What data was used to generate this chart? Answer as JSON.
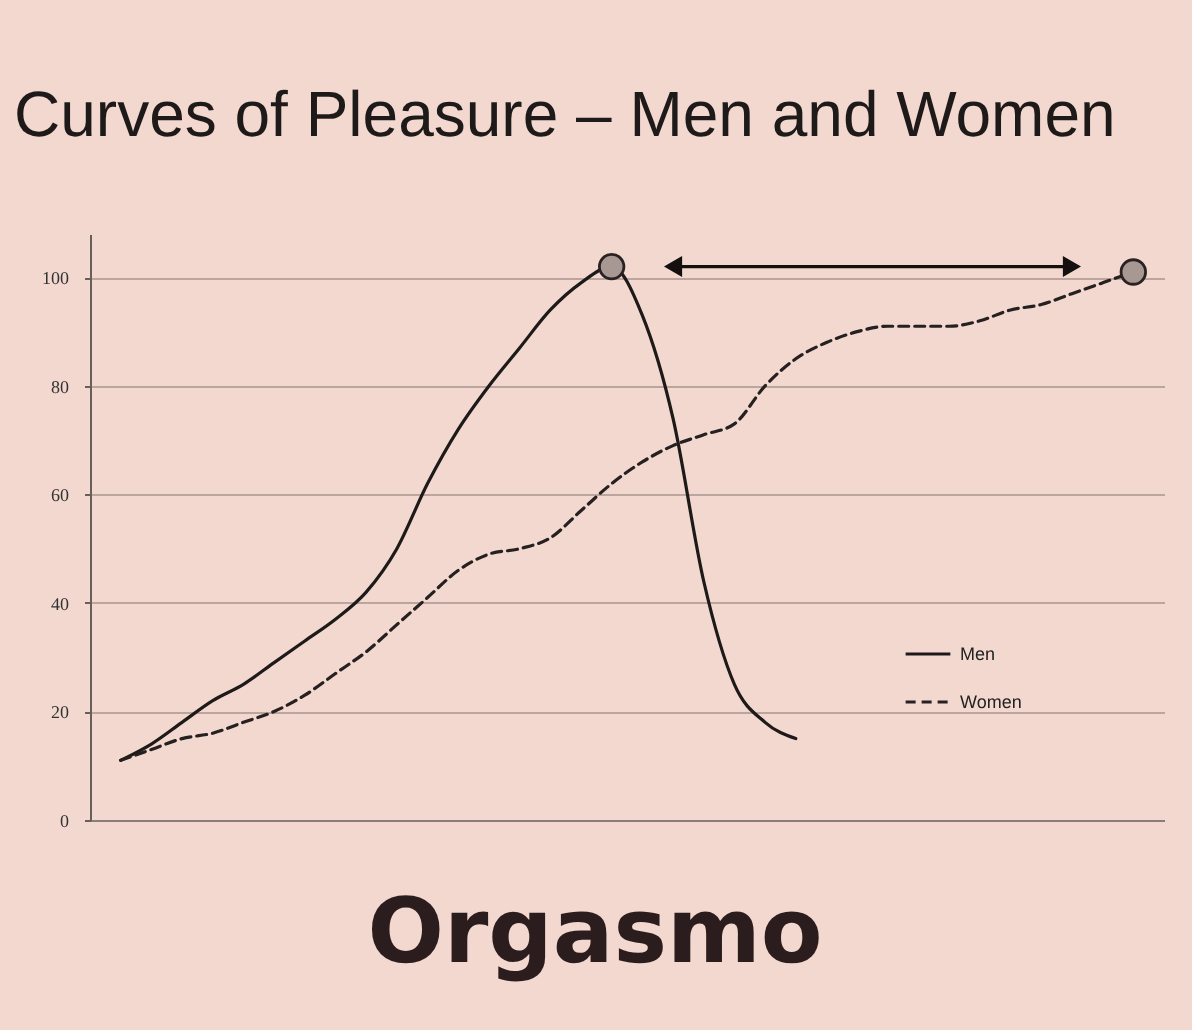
{
  "chart_data": {
    "type": "line",
    "title": "Curves of Pleasure – Men and Women",
    "categories": [
      null,
      null,
      null,
      null,
      null,
      null,
      null,
      null,
      null,
      null,
      null,
      null,
      null,
      null,
      null,
      null,
      null,
      null,
      null,
      null,
      null,
      null,
      null,
      null,
      null,
      null,
      null,
      null,
      null,
      null,
      null,
      null,
      null,
      null
    ],
    "series": [
      {
        "name": "Men",
        "color": "#1e1a1a",
        "line_style": "solid",
        "marker": "none",
        "values": [
          11,
          14,
          18,
          22,
          25,
          29,
          33,
          37,
          42,
          50,
          62,
          72,
          80,
          87,
          94,
          99,
          102,
          93,
          74,
          44,
          25,
          18,
          15,
          null,
          null,
          null,
          null,
          null,
          null,
          null,
          null,
          null,
          null,
          null
        ]
      },
      {
        "name": "Women",
        "color": "#262020",
        "line_style": "dashed",
        "marker": "none",
        "values": [
          11,
          13,
          15,
          16,
          18,
          20,
          23,
          27,
          31,
          36,
          41,
          46,
          49,
          50,
          52,
          57,
          62,
          66,
          69,
          71,
          73,
          80,
          85,
          88,
          90,
          91,
          91,
          91,
          92,
          94,
          95,
          97,
          99,
          101
        ]
      },
      {
        "type": "scatter",
        "color": "#a89894",
        "marker": "circle",
        "values": [
          null,
          null,
          null,
          null,
          null,
          null,
          null,
          null,
          null,
          null,
          null,
          null,
          null,
          null,
          null,
          null,
          102,
          null,
          null,
          null,
          null,
          null,
          null,
          null,
          null,
          null,
          null,
          null,
          null,
          null,
          null,
          null,
          null,
          101
        ]
      },
      {
        "type": "line",
        "color": "#141010",
        "line_style": "solid",
        "marker": "none",
        "values": [
          null,
          null,
          null,
          null,
          null,
          null,
          null,
          null,
          null,
          null,
          null,
          null,
          null,
          null,
          null,
          null,
          null,
          null,
          102,
          102,
          102,
          102,
          102,
          102,
          102,
          102,
          102,
          102,
          102,
          102,
          102,
          102,
          null,
          null
        ]
      },
      {
        "type": "scatter",
        "color": "#141010",
        "marker": "triangle",
        "values": [
          null,
          null,
          null,
          null,
          null,
          null,
          null,
          null,
          null,
          null,
          null,
          null,
          null,
          null,
          null,
          null,
          null,
          null,
          102,
          null,
          null,
          null,
          null,
          null,
          null,
          null,
          null,
          null,
          null,
          null,
          null,
          102,
          null,
          null
        ]
      }
    ],
    "ylim": [
      0,
      108
    ],
    "yticks": [
      0,
      20,
      40,
      60,
      80,
      100
    ],
    "grid": "y",
    "legend": "bottom right",
    "tick_labels": "y",
    "annotations": [
      "Orgasmo"
    ]
  }
}
